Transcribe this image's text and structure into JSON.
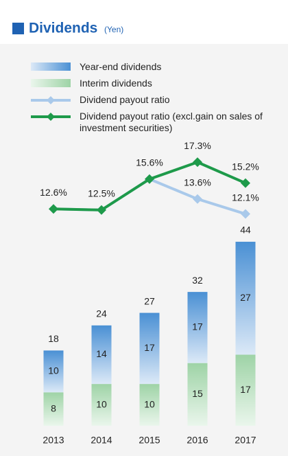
{
  "chart_data": {
    "type": "bar",
    "title": "Dividends",
    "unit": "(Yen)",
    "categories": [
      "2013",
      "2014",
      "2015",
      "2016",
      "2017"
    ],
    "totals": [
      18,
      24,
      27,
      32,
      44
    ],
    "series": [
      {
        "name": "Year-end dividends",
        "kind": "bar",
        "color": "#4a90d4",
        "values": [
          10,
          14,
          17,
          17,
          27
        ]
      },
      {
        "name": "Interim dividends",
        "kind": "bar",
        "color": "#9ed3a6",
        "values": [
          8,
          10,
          10,
          15,
          17
        ]
      },
      {
        "name": "Dividend payout ratio",
        "kind": "line",
        "color": "#a9c9ea",
        "values": [
          12.6,
          12.5,
          15.6,
          13.6,
          12.1
        ],
        "value_labels": [
          null,
          null,
          null,
          "13.6%",
          "12.1%"
        ]
      },
      {
        "name": "Dividend payout ratio (excl.gain on sales of investment securities)",
        "kind": "line",
        "color": "#1e9a4a",
        "values": [
          12.6,
          12.5,
          15.6,
          17.3,
          15.2
        ],
        "value_labels": [
          "12.6%",
          "12.5%",
          "15.6%",
          "17.3%",
          "15.2%"
        ]
      }
    ]
  }
}
